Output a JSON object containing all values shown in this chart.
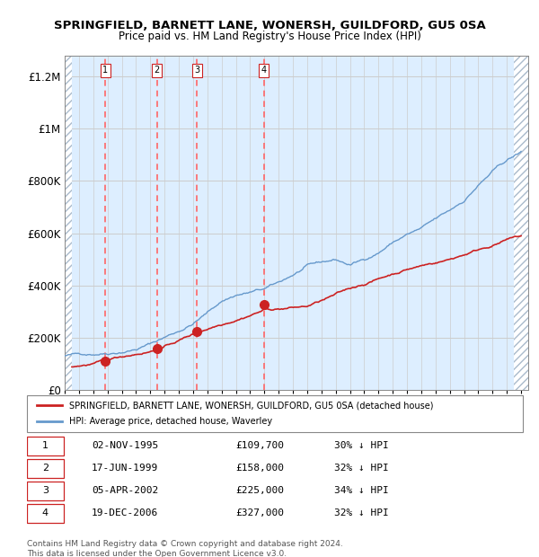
{
  "title": "SPRINGFIELD, BARNETT LANE, WONERSH, GUILDFORD, GU5 0SA",
  "subtitle": "Price paid vs. HM Land Registry's House Price Index (HPI)",
  "ylabel": "",
  "ylim": [
    0,
    1280000
  ],
  "yticks": [
    0,
    200000,
    400000,
    600000,
    800000,
    1000000,
    1200000
  ],
  "ytick_labels": [
    "£0",
    "£200K",
    "£400K",
    "£600K",
    "£800K",
    "£1M",
    "£1.2M"
  ],
  "background_color": "#ffffff",
  "plot_bg_color": "#ddeeff",
  "hatch_color": "#aaccee",
  "grid_color": "#cccccc",
  "transactions": [
    {
      "date": "02-NOV-1995",
      "price": 109700,
      "label": "1",
      "pct": "30%",
      "x_year": 1995.84
    },
    {
      "date": "17-JUN-1999",
      "price": 158000,
      "label": "2",
      "pct": "32%",
      "x_year": 1999.46
    },
    {
      "date": "05-APR-2002",
      "price": 225000,
      "label": "3",
      "pct": "34%",
      "x_year": 2002.27
    },
    {
      "date": "19-DEC-2006",
      "price": 327000,
      "label": "4",
      "pct": "32%",
      "x_year": 2006.97
    }
  ],
  "hpi_line_color": "#6699cc",
  "price_line_color": "#cc2222",
  "marker_color": "#cc2222",
  "vline_color": "#ff6666",
  "legend_red_label": "SPRINGFIELD, BARNETT LANE, WONERSH, GUILDFORD, GU5 0SA (detached house)",
  "legend_blue_label": "HPI: Average price, detached house, Waverley",
  "footer_text": "Contains HM Land Registry data © Crown copyright and database right 2024.\nThis data is licensed under the Open Government Licence v3.0.",
  "xmin": 1993.0,
  "xmax": 2025.5,
  "hatch_left_end": 1993.5,
  "hatch_right_start": 2024.5
}
